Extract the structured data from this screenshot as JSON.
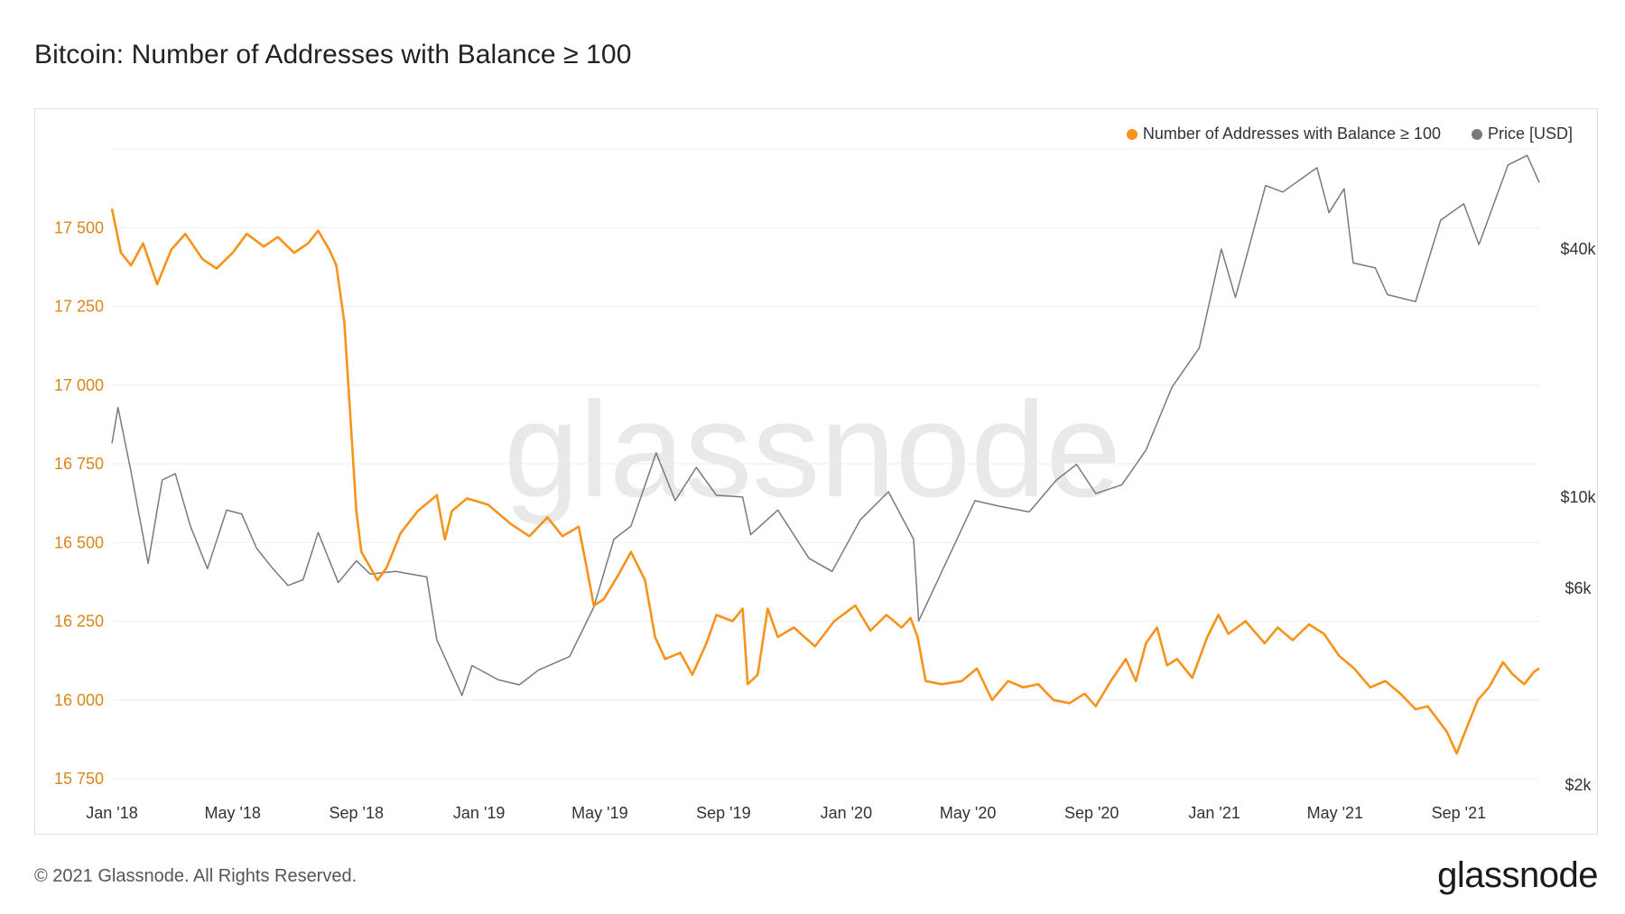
{
  "title": "Bitcoin: Number of Addresses with Balance ≥ 100",
  "footer": {
    "copyright": "© 2021 Glassnode. All Rights Reserved.",
    "logo": "glassnode"
  },
  "watermark": "glassnode",
  "colors": {
    "addresses": "#f7931a",
    "price": "#7a7a7a",
    "grid": "#eeeeee",
    "left_axis_text": "#d9861a",
    "right_axis_text": "#333333"
  },
  "chart_data": {
    "type": "line",
    "title": "Bitcoin: Number of Addresses with Balance ≥ 100",
    "x_ticks": [
      "Jan '18",
      "May '18",
      "Sep '18",
      "Jan '19",
      "May '19",
      "Sep '19",
      "Jan '20",
      "May '20",
      "Sep '20",
      "Jan '21",
      "May '21",
      "Sep '21"
    ],
    "x_range": [
      "2018-01-01",
      "2021-11-20"
    ],
    "left_axis": {
      "label": "Number of Addresses with Balance ≥ 100",
      "range": [
        15730,
        17750
      ],
      "ticks": [
        {
          "value": 15750,
          "label": "15 750"
        },
        {
          "value": 16000,
          "label": "16 000"
        },
        {
          "value": 16250,
          "label": "16 250"
        },
        {
          "value": 16500,
          "label": "16 500"
        },
        {
          "value": 16750,
          "label": "16 750"
        },
        {
          "value": 17000,
          "label": "17 000"
        },
        {
          "value": 17250,
          "label": "17 250"
        },
        {
          "value": 17500,
          "label": "17 500"
        }
      ]
    },
    "right_axis": {
      "label": "Price [USD]",
      "scale": "log",
      "range": [
        2000,
        70000
      ],
      "ticks": [
        {
          "value": 2000,
          "label": "$2k"
        },
        {
          "value": 6000,
          "label": "$6k"
        },
        {
          "value": 10000,
          "label": "$10k"
        },
        {
          "value": 40000,
          "label": "$40k"
        }
      ]
    },
    "legend": [
      {
        "name": "Number of Addresses with Balance ≥ 100",
        "color": "#f7931a"
      },
      {
        "name": "Price [USD]",
        "color": "#7a7a7a"
      }
    ],
    "series": [
      {
        "name": "Number of Addresses with Balance ≥ 100",
        "axis": "left",
        "points": [
          [
            "2018-01-01",
            17560
          ],
          [
            "2018-01-10",
            17420
          ],
          [
            "2018-01-20",
            17380
          ],
          [
            "2018-02-01",
            17450
          ],
          [
            "2018-02-15",
            17320
          ],
          [
            "2018-03-01",
            17430
          ],
          [
            "2018-03-15",
            17480
          ],
          [
            "2018-04-01",
            17400
          ],
          [
            "2018-04-15",
            17370
          ],
          [
            "2018-05-01",
            17420
          ],
          [
            "2018-05-15",
            17480
          ],
          [
            "2018-06-01",
            17440
          ],
          [
            "2018-06-15",
            17470
          ],
          [
            "2018-07-01",
            17420
          ],
          [
            "2018-07-15",
            17450
          ],
          [
            "2018-07-25",
            17490
          ],
          [
            "2018-08-05",
            17430
          ],
          [
            "2018-08-12",
            17380
          ],
          [
            "2018-08-20",
            17200
          ],
          [
            "2018-08-26",
            16900
          ],
          [
            "2018-09-01",
            16600
          ],
          [
            "2018-09-06",
            16470
          ],
          [
            "2018-09-15",
            16420
          ],
          [
            "2018-09-22",
            16380
          ],
          [
            "2018-10-01",
            16420
          ],
          [
            "2018-10-15",
            16530
          ],
          [
            "2018-11-01",
            16600
          ],
          [
            "2018-11-20",
            16650
          ],
          [
            "2018-11-28",
            16510
          ],
          [
            "2018-12-05",
            16600
          ],
          [
            "2018-12-20",
            16640
          ],
          [
            "2019-01-10",
            16620
          ],
          [
            "2019-02-01",
            16560
          ],
          [
            "2019-02-20",
            16520
          ],
          [
            "2019-03-10",
            16580
          ],
          [
            "2019-03-25",
            16520
          ],
          [
            "2019-04-10",
            16550
          ],
          [
            "2019-04-18",
            16420
          ],
          [
            "2019-04-25",
            16300
          ],
          [
            "2019-05-05",
            16320
          ],
          [
            "2019-05-20",
            16400
          ],
          [
            "2019-06-01",
            16470
          ],
          [
            "2019-06-15",
            16380
          ],
          [
            "2019-06-25",
            16200
          ],
          [
            "2019-07-05",
            16130
          ],
          [
            "2019-07-20",
            16150
          ],
          [
            "2019-08-01",
            16080
          ],
          [
            "2019-08-15",
            16180
          ],
          [
            "2019-08-25",
            16270
          ],
          [
            "2019-09-10",
            16250
          ],
          [
            "2019-09-20",
            16290
          ],
          [
            "2019-09-25",
            16050
          ],
          [
            "2019-10-05",
            16080
          ],
          [
            "2019-10-15",
            16290
          ],
          [
            "2019-10-25",
            16200
          ],
          [
            "2019-11-10",
            16230
          ],
          [
            "2019-12-01",
            16170
          ],
          [
            "2019-12-20",
            16250
          ],
          [
            "2020-01-10",
            16300
          ],
          [
            "2020-01-25",
            16220
          ],
          [
            "2020-02-10",
            16270
          ],
          [
            "2020-02-25",
            16230
          ],
          [
            "2020-03-05",
            16260
          ],
          [
            "2020-03-12",
            16200
          ],
          [
            "2020-03-20",
            16060
          ],
          [
            "2020-04-05",
            16050
          ],
          [
            "2020-04-25",
            16060
          ],
          [
            "2020-05-10",
            16100
          ],
          [
            "2020-05-25",
            16000
          ],
          [
            "2020-06-10",
            16060
          ],
          [
            "2020-06-25",
            16040
          ],
          [
            "2020-07-10",
            16050
          ],
          [
            "2020-07-25",
            16000
          ],
          [
            "2020-08-10",
            15990
          ],
          [
            "2020-08-25",
            16020
          ],
          [
            "2020-09-05",
            15980
          ],
          [
            "2020-09-20",
            16060
          ],
          [
            "2020-10-05",
            16130
          ],
          [
            "2020-10-15",
            16060
          ],
          [
            "2020-10-25",
            16180
          ],
          [
            "2020-11-05",
            16230
          ],
          [
            "2020-11-15",
            16110
          ],
          [
            "2020-11-25",
            16130
          ],
          [
            "2020-12-10",
            16070
          ],
          [
            "2020-12-25",
            16200
          ],
          [
            "2021-01-05",
            16270
          ],
          [
            "2021-01-15",
            16210
          ],
          [
            "2021-02-01",
            16250
          ],
          [
            "2021-02-20",
            16180
          ],
          [
            "2021-03-05",
            16230
          ],
          [
            "2021-03-20",
            16190
          ],
          [
            "2021-04-05",
            16240
          ],
          [
            "2021-04-20",
            16210
          ],
          [
            "2021-05-05",
            16140
          ],
          [
            "2021-05-20",
            16100
          ],
          [
            "2021-06-05",
            16040
          ],
          [
            "2021-06-20",
            16060
          ],
          [
            "2021-07-05",
            16020
          ],
          [
            "2021-07-20",
            15970
          ],
          [
            "2021-08-01",
            15980
          ],
          [
            "2021-08-20",
            15900
          ],
          [
            "2021-08-30",
            15830
          ],
          [
            "2021-09-05",
            15880
          ],
          [
            "2021-09-20",
            16000
          ],
          [
            "2021-10-01",
            16040
          ],
          [
            "2021-10-15",
            16120
          ],
          [
            "2021-10-25",
            16080
          ],
          [
            "2021-11-05",
            16050
          ],
          [
            "2021-11-15",
            16090
          ],
          [
            "2021-11-20",
            16100
          ]
        ]
      },
      {
        "name": "Price [USD]",
        "axis": "right",
        "points": [
          [
            "2018-01-01",
            13500
          ],
          [
            "2018-01-07",
            16500
          ],
          [
            "2018-01-20",
            11500
          ],
          [
            "2018-02-06",
            6900
          ],
          [
            "2018-02-20",
            11000
          ],
          [
            "2018-03-05",
            11400
          ],
          [
            "2018-03-20",
            8500
          ],
          [
            "2018-04-06",
            6700
          ],
          [
            "2018-04-25",
            9300
          ],
          [
            "2018-05-10",
            9100
          ],
          [
            "2018-05-25",
            7500
          ],
          [
            "2018-06-10",
            6700
          ],
          [
            "2018-06-25",
            6100
          ],
          [
            "2018-07-10",
            6300
          ],
          [
            "2018-07-25",
            8200
          ],
          [
            "2018-08-14",
            6200
          ],
          [
            "2018-09-01",
            7000
          ],
          [
            "2018-09-15",
            6500
          ],
          [
            "2018-10-10",
            6600
          ],
          [
            "2018-11-10",
            6400
          ],
          [
            "2018-11-20",
            4500
          ],
          [
            "2018-12-15",
            3300
          ],
          [
            "2018-12-25",
            3900
          ],
          [
            "2019-01-20",
            3600
          ],
          [
            "2019-02-10",
            3500
          ],
          [
            "2019-03-01",
            3800
          ],
          [
            "2019-04-01",
            4100
          ],
          [
            "2019-04-25",
            5400
          ],
          [
            "2019-05-15",
            7900
          ],
          [
            "2019-06-01",
            8500
          ],
          [
            "2019-06-26",
            12800
          ],
          [
            "2019-07-15",
            9800
          ],
          [
            "2019-08-05",
            11800
          ],
          [
            "2019-08-25",
            10100
          ],
          [
            "2019-09-20",
            10000
          ],
          [
            "2019-09-28",
            8100
          ],
          [
            "2019-10-25",
            9300
          ],
          [
            "2019-11-25",
            7100
          ],
          [
            "2019-12-18",
            6600
          ],
          [
            "2020-01-15",
            8800
          ],
          [
            "2020-02-12",
            10300
          ],
          [
            "2020-03-08",
            7900
          ],
          [
            "2020-03-13",
            5000
          ],
          [
            "2020-04-10",
            7000
          ],
          [
            "2020-05-08",
            9800
          ],
          [
            "2020-06-01",
            9500
          ],
          [
            "2020-07-01",
            9200
          ],
          [
            "2020-07-28",
            11000
          ],
          [
            "2020-08-17",
            12000
          ],
          [
            "2020-09-05",
            10200
          ],
          [
            "2020-10-01",
            10700
          ],
          [
            "2020-10-25",
            13000
          ],
          [
            "2020-11-20",
            18500
          ],
          [
            "2020-12-17",
            23000
          ],
          [
            "2021-01-08",
            40000
          ],
          [
            "2021-01-22",
            30500
          ],
          [
            "2021-02-21",
            57000
          ],
          [
            "2021-03-10",
            55000
          ],
          [
            "2021-04-13",
            63000
          ],
          [
            "2021-04-25",
            49000
          ],
          [
            "2021-05-10",
            56000
          ],
          [
            "2021-05-19",
            37000
          ],
          [
            "2021-06-10",
            36000
          ],
          [
            "2021-06-22",
            31000
          ],
          [
            "2021-07-20",
            29800
          ],
          [
            "2021-08-14",
            47000
          ],
          [
            "2021-09-06",
            51500
          ],
          [
            "2021-09-21",
            41000
          ],
          [
            "2021-10-20",
            64000
          ],
          [
            "2021-11-08",
            67500
          ],
          [
            "2021-11-20",
            58000
          ]
        ]
      }
    ]
  }
}
